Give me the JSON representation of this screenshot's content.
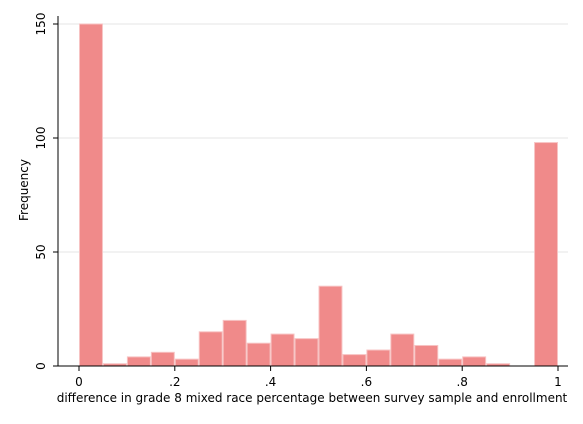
{
  "chart_data": {
    "type": "bar",
    "title": "",
    "xlabel": "difference in grade 8 mixed race percentage between survey sample and enrollment",
    "ylabel": "Frequency",
    "xlim": [
      0,
      1
    ],
    "ylim": [
      0,
      150
    ],
    "grid": true,
    "legend": "none",
    "bar_color": "#f08a8a",
    "bar_edge_color": "#f7c3c3",
    "x_ticks": [
      {
        "value": 0,
        "label": "0"
      },
      {
        "value": 0.2,
        "label": ".2"
      },
      {
        "value": 0.4,
        "label": ".4"
      },
      {
        "value": 0.6,
        "label": ".6"
      },
      {
        "value": 0.8,
        "label": ".8"
      },
      {
        "value": 1,
        "label": "1"
      }
    ],
    "y_ticks": [
      {
        "value": 0,
        "label": "0"
      },
      {
        "value": 50,
        "label": "50"
      },
      {
        "value": 100,
        "label": "100"
      },
      {
        "value": 150,
        "label": "150"
      }
    ],
    "bin_width": 0.05,
    "bins_start": [
      0,
      0.05,
      0.1,
      0.15,
      0.2,
      0.25,
      0.3,
      0.35,
      0.4,
      0.45,
      0.5,
      0.55,
      0.6,
      0.65,
      0.7,
      0.75,
      0.8,
      0.85,
      0.9,
      0.95
    ],
    "values": [
      150,
      1,
      4,
      6,
      3,
      15,
      20,
      10,
      14,
      12,
      35,
      5,
      7,
      14,
      9,
      3,
      4,
      1,
      0,
      98
    ]
  }
}
